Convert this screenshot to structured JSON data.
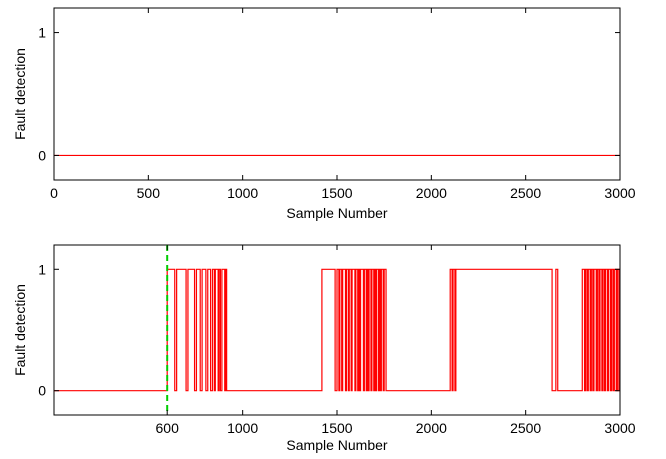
{
  "chart_data": [
    {
      "type": "line",
      "title": "",
      "xlabel": "Sample Number",
      "ylabel": "Fault detection",
      "xlim": [
        0,
        3000
      ],
      "ylim": [
        -0.2,
        1.2
      ],
      "xticks": [
        0,
        500,
        1000,
        1500,
        2000,
        2500,
        3000
      ],
      "xtick_labels": [
        "0",
        "500",
        "1000",
        "1500",
        "2000",
        "2500",
        "3000"
      ],
      "yticks": [
        0,
        1
      ],
      "ytick_labels": [
        "0",
        "1"
      ],
      "grid": false,
      "series": [
        {
          "color": "#ff0000",
          "x": [
            0,
            3000
          ],
          "y": [
            0,
            0
          ]
        }
      ]
    },
    {
      "type": "line",
      "title": "",
      "xlabel": "Sample Number",
      "ylabel": "Fault detection",
      "xlim": [
        0,
        3000
      ],
      "ylim": [
        -0.2,
        1.2
      ],
      "xticks": [
        600,
        1000,
        1500,
        2000,
        2500,
        3000
      ],
      "xtick_labels": [
        "600",
        "1000",
        "1500",
        "2000",
        "2500",
        "3000"
      ],
      "yticks": [
        0,
        1
      ],
      "ytick_labels": [
        "0",
        "1"
      ],
      "grid": false,
      "fault_onset": {
        "x": 600,
        "color": "#00cc00",
        "style": "dashed"
      },
      "series": [
        {
          "color": "#ff0000",
          "pulses": [
            [
              600,
              640
            ],
            [
              650,
              700
            ],
            [
              710,
              745
            ],
            [
              755,
              775
            ],
            [
              785,
              805
            ],
            [
              815,
              830
            ],
            [
              840,
              850
            ],
            [
              855,
              870
            ],
            [
              875,
              882
            ],
            [
              890,
              905
            ],
            [
              910,
              915
            ],
            [
              1420,
              1490
            ],
            [
              1500,
              1510
            ],
            [
              1515,
              1525
            ],
            [
              1530,
              1545
            ],
            [
              1550,
              1560
            ],
            [
              1565,
              1575
            ],
            [
              1580,
              1595
            ],
            [
              1600,
              1610
            ],
            [
              1615,
              1620
            ],
            [
              1625,
              1640
            ],
            [
              1645,
              1655
            ],
            [
              1660,
              1665
            ],
            [
              1670,
              1680
            ],
            [
              1685,
              1695
            ],
            [
              1700,
              1705
            ],
            [
              1710,
              1720
            ],
            [
              1725,
              1730
            ],
            [
              1735,
              1745
            ],
            [
              1750,
              1760
            ],
            [
              2100,
              2110
            ],
            [
              2115,
              2125
            ],
            [
              2130,
              2640
            ],
            [
              2660,
              2670
            ],
            [
              2800,
              2812
            ],
            [
              2818,
              2826
            ],
            [
              2832,
              2842
            ],
            [
              2848,
              2856
            ],
            [
              2862,
              2874
            ],
            [
              2880,
              2888
            ],
            [
              2894,
              2904
            ],
            [
              2910,
              2918
            ],
            [
              2924,
              2934
            ],
            [
              2940,
              2950
            ],
            [
              2956,
              2964
            ],
            [
              2970,
              2980
            ],
            [
              2986,
              2994
            ]
          ]
        }
      ]
    }
  ]
}
